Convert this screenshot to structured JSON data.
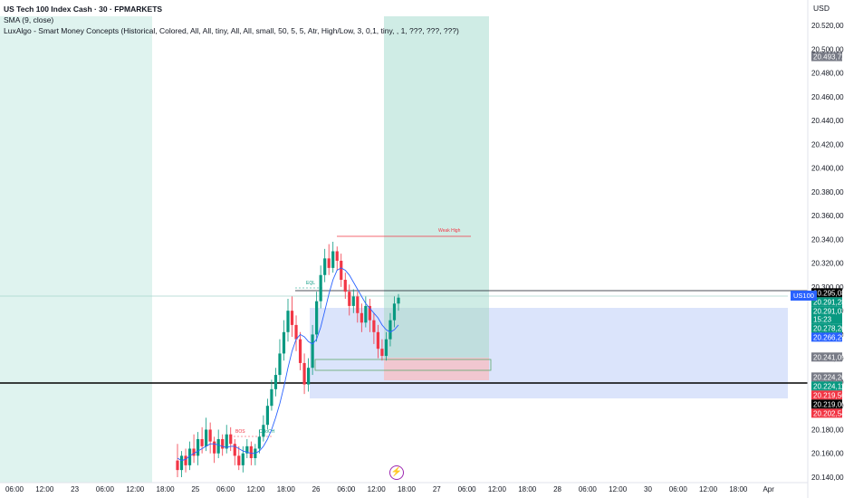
{
  "legend": {
    "title": "US Tech 100 Index Cash · 30 · FPMARKETS",
    "sma": "SMA (9, close)",
    "indicator": "LuxAlgo - Smart Money Concepts (Historical, Colored, All, All, tiny, All, All, small, 50, 5, 5, Atr, High/Low, 3, 0,1, tiny, , 1, ???, ???, ???)"
  },
  "currency": "USD",
  "symbol_tag": "US100",
  "chart_data": {
    "type": "candlestick",
    "y_ticks": [
      "20.520,00",
      "20.500,00",
      "20.480,00",
      "20.460,00",
      "20.440,00",
      "20.420,00",
      "20.400,00",
      "20.380,00",
      "20.360,00",
      "20.340,00",
      "20.320,00",
      "20.300,00",
      "20.280,00",
      "20.260,00",
      "20.240,00",
      "20.220,00",
      "20.200,00",
      "20.180,00",
      "20.160,00",
      "20.140,00"
    ],
    "ylim": [
      20140,
      20520
    ],
    "x_ticks": [
      {
        "label": "06:00",
        "slot": 0
      },
      {
        "label": "12:00",
        "slot": 1
      },
      {
        "label": "23",
        "slot": 2
      },
      {
        "label": "06:00",
        "slot": 3
      },
      {
        "label": "12:00",
        "slot": 4
      },
      {
        "label": "18:00",
        "slot": 5
      },
      {
        "label": "25",
        "slot": 6
      },
      {
        "label": "06:00",
        "slot": 7
      },
      {
        "label": "12:00",
        "slot": 8
      },
      {
        "label": "18:00",
        "slot": 9
      },
      {
        "label": "26",
        "slot": 10
      },
      {
        "label": "06:00",
        "slot": 11
      },
      {
        "label": "12:00",
        "slot": 12
      },
      {
        "label": "18:00",
        "slot": 13
      },
      {
        "label": "27",
        "slot": 14
      },
      {
        "label": "06:00",
        "slot": 15
      },
      {
        "label": "12:00",
        "slot": 16
      },
      {
        "label": "18:00",
        "slot": 17
      },
      {
        "label": "28",
        "slot": 18
      },
      {
        "label": "06:00",
        "slot": 19
      },
      {
        "label": "12:00",
        "slot": 20
      },
      {
        "label": "30",
        "slot": 21
      },
      {
        "label": "06:00",
        "slot": 22
      },
      {
        "label": "12:00",
        "slot": 23
      },
      {
        "label": "18:00",
        "slot": 24
      },
      {
        "label": "Apr",
        "slot": 25
      }
    ],
    "price_tags": [
      {
        "label": "20.493,72",
        "value": 20493.72,
        "color": "#787b86"
      },
      {
        "label": "20.295,08",
        "value": 20295.08,
        "color": "#000000"
      },
      {
        "label": "20.291,28",
        "value": 20291.28,
        "color": "#089981"
      },
      {
        "label": "20.291,03",
        "value": 20291.03,
        "color": "#089981",
        "sub": "15:23"
      },
      {
        "label": "20.278,20",
        "value": 20278.2,
        "color": "#089981"
      },
      {
        "label": "20.266,29",
        "value": 20266.29,
        "color": "#2962ff"
      },
      {
        "label": "20.241,05",
        "value": 20241.05,
        "color": "#787b86"
      },
      {
        "label": "20.224,26",
        "value": 20224.26,
        "color": "#787b86"
      },
      {
        "label": "20.224,11",
        "value": 20224.11,
        "color": "#089981"
      },
      {
        "label": "20.219,56",
        "value": 20219.56,
        "color": "#f23645"
      },
      {
        "label": "20.219,00",
        "value": 20219.0,
        "color": "#000000"
      },
      {
        "label": "20.202,54",
        "value": 20202.54,
        "color": "#f23645"
      }
    ],
    "annotations": [
      "Weak High",
      "EQL",
      "CHoCH",
      "BOS"
    ],
    "horizontal_lines": [
      20295.08,
      20224.5
    ],
    "candles": [
      [
        20154,
        20146,
        20168,
        20140
      ],
      [
        20146,
        20158,
        20162,
        20140
      ],
      [
        20158,
        20150,
        20164,
        20144
      ],
      [
        20150,
        20164,
        20170,
        20146
      ],
      [
        20164,
        20158,
        20176,
        20152
      ],
      [
        20158,
        20172,
        20178,
        20150
      ],
      [
        20172,
        20166,
        20182,
        20160
      ],
      [
        20166,
        20180,
        20190,
        20162
      ],
      [
        20180,
        20170,
        20186,
        20160
      ],
      [
        20170,
        20160,
        20174,
        20152
      ],
      [
        20160,
        20172,
        20180,
        20156
      ],
      [
        20172,
        20164,
        20176,
        20158
      ],
      [
        20164,
        20176,
        20184,
        20160
      ],
      [
        20176,
        20168,
        20182,
        20162
      ],
      [
        20168,
        20158,
        20172,
        20150
      ],
      [
        20158,
        20150,
        20166,
        20146
      ],
      [
        20150,
        20160,
        20166,
        20144
      ],
      [
        20160,
        20166,
        20172,
        20156
      ],
      [
        20166,
        20156,
        20170,
        20150
      ],
      [
        20156,
        20164,
        20168,
        20150
      ],
      [
        20164,
        20174,
        20180,
        20160
      ],
      [
        20174,
        20184,
        20192,
        20170
      ],
      [
        20184,
        20200,
        20206,
        20180
      ],
      [
        20200,
        20214,
        20222,
        20196
      ],
      [
        20214,
        20226,
        20232,
        20208
      ],
      [
        20226,
        20244,
        20256,
        20220
      ],
      [
        20244,
        20262,
        20272,
        20238
      ],
      [
        20262,
        20280,
        20290,
        20254
      ],
      [
        20280,
        20268,
        20292,
        20258
      ],
      [
        20268,
        20256,
        20276,
        20246
      ],
      [
        20256,
        20236,
        20262,
        20230
      ],
      [
        20236,
        20218,
        20244,
        20210
      ],
      [
        20218,
        20232,
        20240,
        20212
      ],
      [
        20232,
        20260,
        20268,
        20226
      ],
      [
        20260,
        20288,
        20296,
        20254
      ],
      [
        20288,
        20310,
        20318,
        20282
      ],
      [
        20310,
        20324,
        20332,
        20304
      ],
      [
        20324,
        20316,
        20336,
        20310
      ],
      [
        20316,
        20330,
        20338,
        20312
      ],
      [
        20330,
        20322,
        20334,
        20314
      ],
      [
        20322,
        20306,
        20328,
        20300
      ],
      [
        20306,
        20296,
        20312,
        20290
      ],
      [
        20296,
        20284,
        20302,
        20276
      ],
      [
        20284,
        20292,
        20298,
        20278
      ],
      [
        20292,
        20278,
        20296,
        20270
      ],
      [
        20278,
        20270,
        20286,
        20262
      ],
      [
        20270,
        20284,
        20292,
        20266
      ],
      [
        20284,
        20272,
        20290,
        20262
      ],
      [
        20272,
        20262,
        20278,
        20252
      ],
      [
        20262,
        20248,
        20268,
        20240
      ],
      [
        20248,
        20242,
        20256,
        20238
      ],
      [
        20242,
        20256,
        20262,
        20238
      ],
      [
        20256,
        20272,
        20278,
        20250
      ],
      [
        20272,
        20286,
        20292,
        20266
      ],
      [
        20286,
        20291,
        20294,
        20280
      ]
    ],
    "sma_values": [
      20156,
      20154,
      20155,
      20158,
      20160,
      20162,
      20164,
      20166,
      20168,
      20168,
      20167,
      20166,
      20165,
      20166,
      20166,
      20164,
      20162,
      20161,
      20160,
      20160,
      20162,
      20166,
      20172,
      20180,
      20190,
      20202,
      20216,
      20232,
      20246,
      20256,
      20260,
      20258,
      20254,
      20252,
      20256,
      20266,
      20280,
      20294,
      20306,
      20314,
      20316,
      20314,
      20310,
      20304,
      20298,
      20292,
      20286,
      20282,
      20278,
      20274,
      20268,
      20264,
      20262,
      20264,
      20268
    ]
  }
}
